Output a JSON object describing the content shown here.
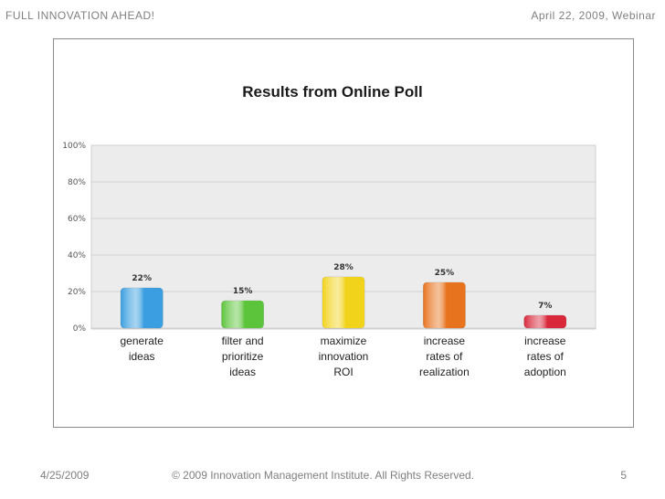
{
  "header": {
    "left": "FULL  INNOVATION  AHEAD!",
    "right": "April 22, 2009, Webinar"
  },
  "footer": {
    "date": "4/25/2009",
    "copyright": "© 2009 Innovation Management Institute. All Rights Reserved.",
    "page": "5"
  },
  "chart_data": {
    "type": "bar",
    "title": "Results from Online Poll",
    "categories": [
      [
        "generate",
        "ideas"
      ],
      [
        "filter and",
        "prioritize",
        "ideas"
      ],
      [
        "maximize",
        "innovation",
        "ROI"
      ],
      [
        "increase",
        "rates of",
        "realization"
      ],
      [
        "increase",
        "rates of",
        "adoption"
      ]
    ],
    "values": [
      22,
      15,
      28,
      25,
      7
    ],
    "data_labels": [
      "22%",
      "15%",
      "28%",
      "25%",
      "7%"
    ],
    "ylim": [
      0,
      100
    ],
    "yticks": [
      "0%",
      "20%",
      "40%",
      "60%",
      "80%",
      "100%"
    ],
    "grid": true,
    "colors": [
      "#3a9ee0",
      "#5cc43a",
      "#f2d31c",
      "#e8731e",
      "#d8283a"
    ],
    "plot_background": "#ececec"
  }
}
